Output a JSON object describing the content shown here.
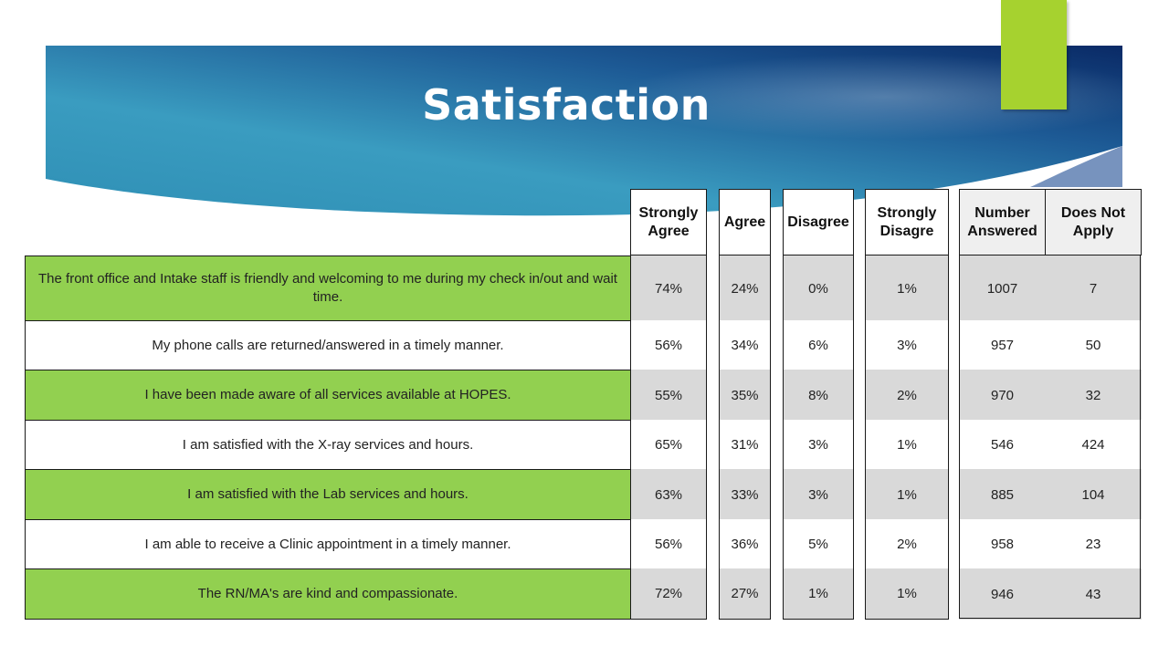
{
  "title": "Satisfaction",
  "colors": {
    "banner_dark": "#0a2a66",
    "banner_light": "#3a9cc0",
    "accent": "#a6d22f",
    "row_green": "#92d050",
    "cell_gray": "#d9d9d9"
  },
  "table": {
    "headers": {
      "strongly_agree": "Strongly Agree",
      "agree": "Agree",
      "disagree": "Disagree",
      "strongly_disagree": "Strongly Disagre",
      "number_answered": "Number Answered",
      "does_not_apply": "Does Not Apply"
    },
    "rows": [
      {
        "question": "The front office and Intake staff is friendly and welcoming to me during my check in/out and wait time.",
        "strongly_agree": "74%",
        "agree": "24%",
        "disagree": "0%",
        "strongly_disagree": "1%",
        "number_answered": "1007",
        "does_not_apply": "7"
      },
      {
        "question": "My phone calls are returned/answered  in a timely manner.",
        "strongly_agree": "56%",
        "agree": "34%",
        "disagree": "6%",
        "strongly_disagree": "3%",
        "number_answered": "957",
        "does_not_apply": "50"
      },
      {
        "question": "I have been made aware of all services available at HOPES.",
        "strongly_agree": "55%",
        "agree": "35%",
        "disagree": "8%",
        "strongly_disagree": "2%",
        "number_answered": "970",
        "does_not_apply": "32"
      },
      {
        "question": "I am satisfied with the X-ray services and hours.",
        "strongly_agree": "65%",
        "agree": "31%",
        "disagree": "3%",
        "strongly_disagree": "1%",
        "number_answered": "546",
        "does_not_apply": "424"
      },
      {
        "question": "I am satisfied with the Lab services and hours.",
        "strongly_agree": "63%",
        "agree": "33%",
        "disagree": "3%",
        "strongly_disagree": "1%",
        "number_answered": "885",
        "does_not_apply": "104"
      },
      {
        "question": "I am able to receive a Clinic appointment  in a timely manner.",
        "strongly_agree": "56%",
        "agree": "36%",
        "disagree": "5%",
        "strongly_disagree": "2%",
        "number_answered": "958",
        "does_not_apply": "23"
      },
      {
        "question": "The RN/MA's are kind and compassionate.",
        "strongly_agree": "72%",
        "agree": "27%",
        "disagree": "1%",
        "strongly_disagree": "1%",
        "number_answered": "946",
        "does_not_apply": "43"
      }
    ]
  }
}
